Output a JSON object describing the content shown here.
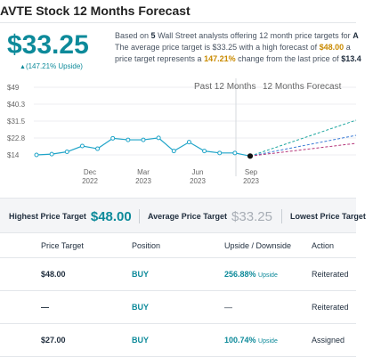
{
  "header": {
    "title": "AVTE Stock 12 Months Forecast"
  },
  "price_box": {
    "price": "$33.25",
    "upside_arrow": "▲",
    "upside": "(147.21% Upside)"
  },
  "summary": {
    "line1_prefix": "Based on",
    "analyst_count": "5",
    "line1_suffix": "Wall Street analysts offering 12 month price targets for",
    "line1_ticker": "A",
    "line2_prefix": "The average price target is $33.25 with a high forecast of",
    "line2_high": "$48.00",
    "line2_suffix": "a",
    "line3_prefix": "price target represents a",
    "line3_change": "147.21%",
    "line3_suffix": "change from the last price of",
    "line3_last": "$13.4"
  },
  "chart_data": {
    "type": "line",
    "legend_past": "Past 12 Months",
    "legend_forecast": "12 Months Forecast",
    "y_ticks": [
      "$49",
      "$40.3",
      "$31.5",
      "$22.8",
      "$14"
    ],
    "ylim": [
      14,
      49
    ],
    "x_ticks": [
      {
        "month": "Dec",
        "year": "2022"
      },
      {
        "month": "Mar",
        "year": "2023"
      },
      {
        "month": "Jun",
        "year": "2023"
      },
      {
        "month": "Sep",
        "year": "2023"
      }
    ],
    "past_series": [
      14.0,
      14.4,
      15.6,
      18.6,
      17.2,
      22.6,
      21.8,
      21.8,
      22.8,
      16.0,
      20.6,
      16.0,
      15.0,
      15.0,
      13.4
    ],
    "past_color": "#1fa4c8",
    "forecast_colors": {
      "high": "#1ea7a0",
      "average": "#3a7bd5",
      "low": "#b5367a"
    }
  },
  "kpis": {
    "high_label": "Highest Price Target",
    "high_value": "$48.00",
    "avg_label": "Average Price Target",
    "avg_value": "$33.25",
    "low_label": "Lowest Price Target"
  },
  "table": {
    "headers": [
      "Price Target",
      "Position",
      "Upside / Downside",
      "Action"
    ],
    "rows": [
      {
        "target": "$48.00",
        "position": "BUY",
        "upside": "256.88%",
        "upside_tag": "Upside",
        "action": "Reiterated"
      },
      {
        "target": "—",
        "position": "BUY",
        "upside": "—",
        "upside_tag": "",
        "action": "Reiterated"
      },
      {
        "target": "$27.00",
        "position": "BUY",
        "upside": "100.74%",
        "upside_tag": "Upside",
        "action": "Assigned"
      }
    ]
  }
}
